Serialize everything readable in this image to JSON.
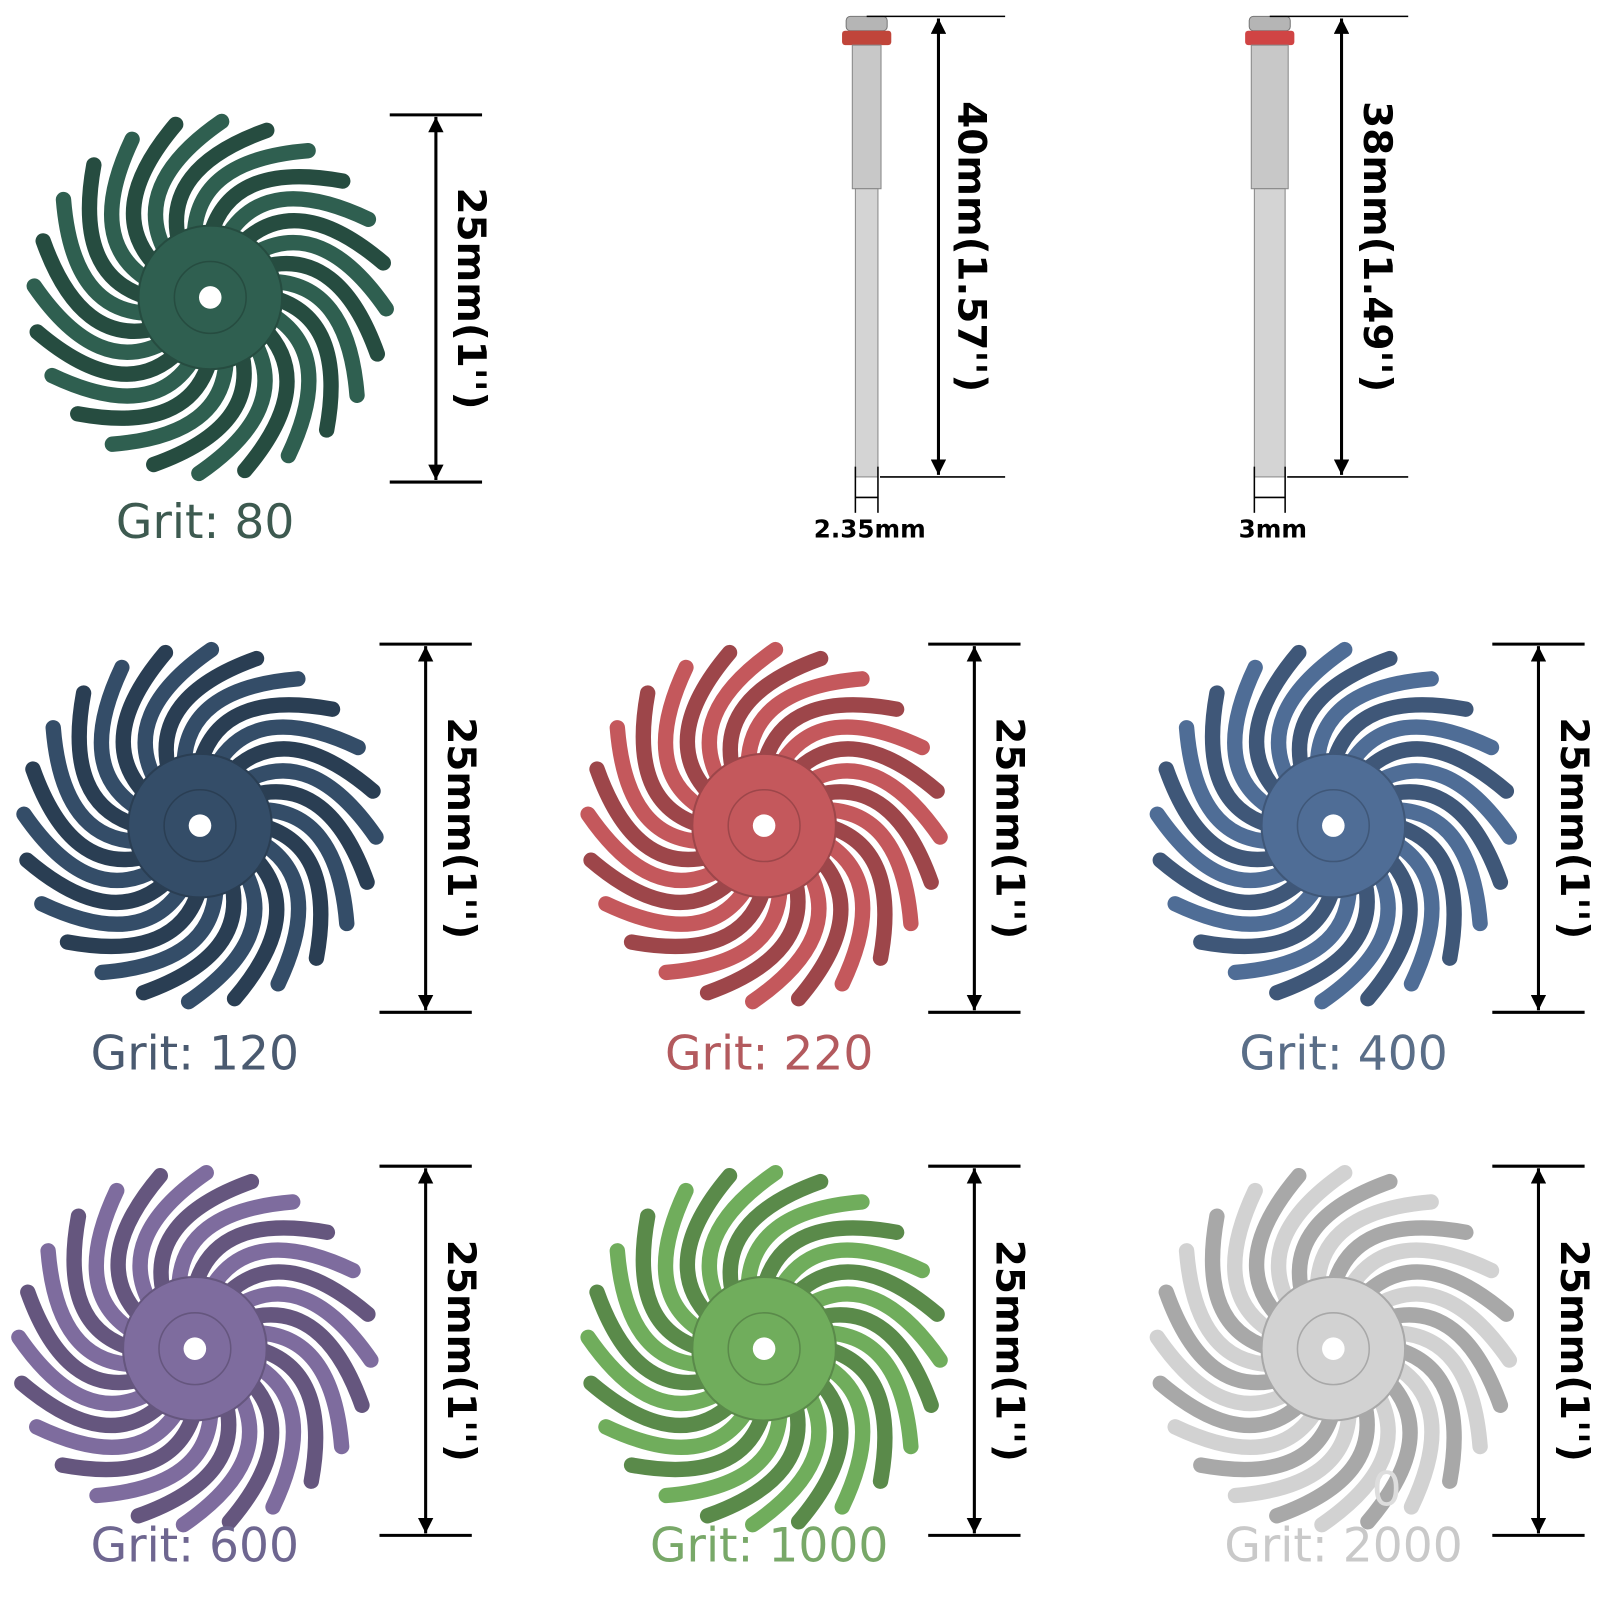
{
  "brushes": [
    {
      "grit": "Grit: 80",
      "size": "25mm(1'')"
    },
    {
      "grit": "Grit: 120",
      "size": "25mm(1'')"
    },
    {
      "grit": "Grit: 220",
      "size": "25mm(1'')"
    },
    {
      "grit": "Grit: 400",
      "size": "25mm(1'')"
    },
    {
      "grit": "Grit: 600",
      "size": "25mm(1'')"
    },
    {
      "grit": "Grit: 1000",
      "size": "25mm(1'')"
    },
    {
      "grit": "Grit: 2000",
      "size": "25mm(1'')"
    }
  ],
  "mandrels": [
    {
      "length": "40mm(1.57'')",
      "diameter": "2.35mm"
    },
    {
      "length": "38mm(1.49'')",
      "diameter": "3mm"
    }
  ],
  "stray_text": "0"
}
